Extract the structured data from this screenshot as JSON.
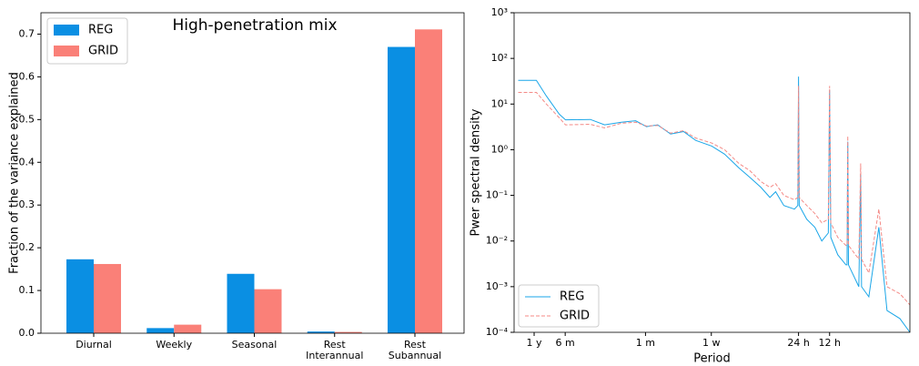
{
  "chart_data": [
    {
      "type": "bar",
      "title": "High-penetration mix",
      "ylabel": "Fraction of the variance explained",
      "categories": [
        "Diurnal",
        "Weekly",
        "Seasonal",
        "Rest\nInterannual",
        "Rest\nSubannual"
      ],
      "series": [
        {
          "name": "REG",
          "color": "#0a8fe3",
          "values": [
            0.173,
            0.012,
            0.139,
            0.004,
            0.67
          ]
        },
        {
          "name": "GRID",
          "color": "#fa8078",
          "values": [
            0.162,
            0.02,
            0.103,
            0.003,
            0.711
          ]
        }
      ],
      "ylim": [
        0,
        0.75
      ],
      "yticks": [
        {
          "value": 0,
          "label": "0.0"
        },
        0.1,
        0.2,
        0.3,
        0.4,
        0.5,
        0.6,
        0.7
      ],
      "legend": "upper left"
    },
    {
      "type": "line",
      "xlabel": "Period",
      "ylabel": "Pwer spectral density",
      "xscale": "log",
      "yscale": "log",
      "x": [
        8e-05,
        0.00012,
        0.00015,
        0.0002,
        0.00023,
        0.0004,
        0.00055,
        0.0008,
        0.0011,
        0.0014,
        0.0018,
        0.0024,
        0.0032,
        0.0042,
        0.006,
        0.008,
        0.011,
        0.014,
        0.018,
        0.022,
        0.025,
        0.03,
        0.038,
        0.041,
        0.04167,
        0.0423,
        0.05,
        0.06,
        0.07,
        0.081,
        0.08333,
        0.0856,
        0.1,
        0.12,
        0.123,
        0.125,
        0.127,
        0.16,
        0.1667,
        0.17,
        0.2,
        0.25,
        0.3,
        0.4,
        0.5
      ],
      "series": [
        {
          "name": "REG",
          "color": "#1aa6e8",
          "dash": "solid",
          "values": [
            33,
            33,
            15,
            6,
            4.5,
            4.6,
            3.5,
            4,
            4.3,
            3.2,
            3.5,
            2.2,
            2.5,
            1.6,
            1.2,
            0.8,
            0.4,
            0.25,
            0.15,
            0.09,
            0.12,
            0.06,
            0.05,
            0.06,
            40,
            0.06,
            0.03,
            0.02,
            0.01,
            0.015,
            20,
            0.012,
            0.005,
            0.003,
            0.003,
            1.5,
            0.003,
            0.001,
            0.3,
            0.001,
            0.0006,
            0.02,
            0.0003,
            0.0002,
            0.0001
          ]
        },
        {
          "name": "GRID",
          "color": "#f48a86",
          "dash": "dashed",
          "values": [
            18,
            18,
            10,
            5,
            3.5,
            3.6,
            3.0,
            3.8,
            4.0,
            3.3,
            3.4,
            2.3,
            2.6,
            1.8,
            1.4,
            1.0,
            0.5,
            0.35,
            0.2,
            0.15,
            0.18,
            0.1,
            0.08,
            0.09,
            25,
            0.09,
            0.06,
            0.04,
            0.025,
            0.03,
            25,
            0.025,
            0.012,
            0.008,
            0.008,
            2,
            0.008,
            0.004,
            0.5,
            0.004,
            0.002,
            0.05,
            0.001,
            0.0007,
            0.0004
          ]
        }
      ],
      "xlim": [
        7.3e-05,
        0.5
      ],
      "xticks": [
        {
          "value": 0.000114155,
          "label": "1 y"
        },
        {
          "value": 0.000228311,
          "label": "6 m"
        },
        {
          "value": 0.00136986,
          "label": "1 m"
        },
        {
          "value": 0.00595238,
          "label": "1 w"
        },
        {
          "value": 0.0416667,
          "label": "24 h"
        },
        {
          "value": 0.0833333,
          "label": "12 h"
        }
      ],
      "ylim": [
        0.0001,
        1000
      ],
      "yticks": [
        {
          "value": 0.0001,
          "label": "10⁻⁴"
        },
        {
          "value": 0.001,
          "label": "10⁻³"
        },
        {
          "value": 0.01,
          "label": "10⁻²"
        },
        {
          "value": 0.1,
          "label": "10⁻¹"
        },
        {
          "value": 1,
          "label": "10⁰"
        },
        {
          "value": 10,
          "label": "10¹"
        },
        {
          "value": 100,
          "label": "10²"
        },
        {
          "value": 1000,
          "label": "10³"
        }
      ],
      "legend": "lower left"
    }
  ]
}
